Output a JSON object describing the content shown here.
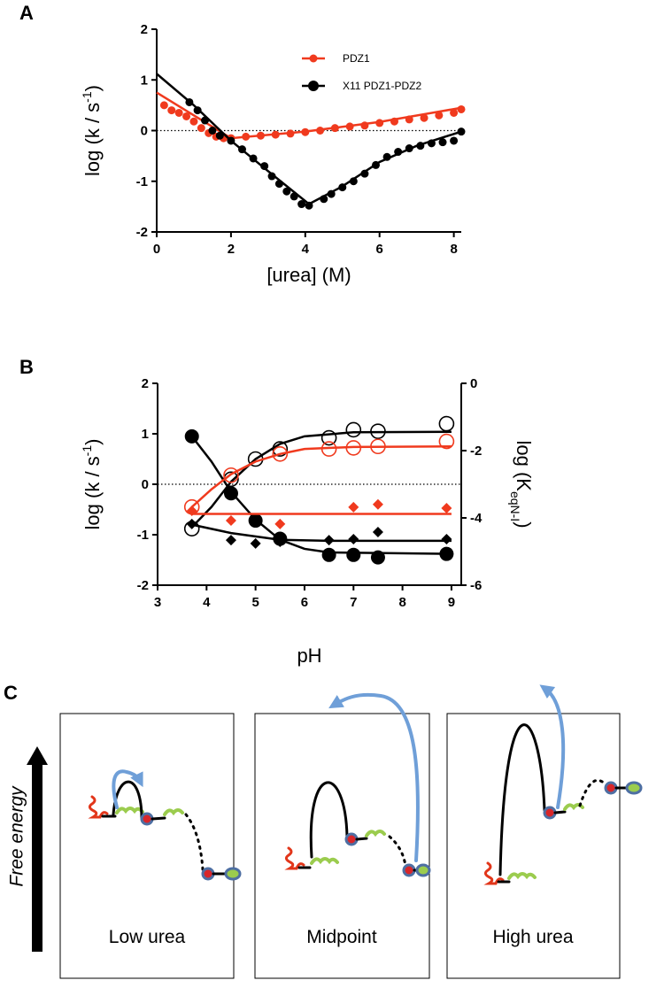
{
  "chart_data": [
    {
      "type": "scatter",
      "panel_label": "A",
      "xlabel": "[urea] (M)",
      "ylabel": {
        "text": "log (k / s",
        "sup": "-1",
        "tail": ")"
      },
      "xlim": [
        0,
        8.2
      ],
      "xticks": [
        0,
        2,
        4,
        6,
        8
      ],
      "ylim": [
        -2,
        2
      ],
      "yticks": [
        2,
        1,
        0,
        -1,
        -2
      ],
      "zero_line": true,
      "legend": "upper right",
      "series": [
        {
          "name": "PDZ1",
          "color": "#f03a1e",
          "marker": "circle",
          "x": [
            0.2,
            0.4,
            0.6,
            0.8,
            1.0,
            1.2,
            1.4,
            1.6,
            1.8,
            2.0,
            2.4,
            2.8,
            3.2,
            3.6,
            4.0,
            4.4,
            4.8,
            5.2,
            5.6,
            6.0,
            6.4,
            6.8,
            7.2,
            7.6,
            8.0,
            8.2
          ],
          "values": [
            0.5,
            0.4,
            0.35,
            0.28,
            0.18,
            0.05,
            -0.05,
            -0.12,
            -0.15,
            -0.15,
            -0.12,
            -0.1,
            -0.08,
            -0.06,
            -0.03,
            0.0,
            0.05,
            0.08,
            0.1,
            0.15,
            0.18,
            0.22,
            0.25,
            0.3,
            0.35,
            0.42
          ],
          "fit_x": [
            0,
            1,
            2,
            4,
            6,
            8.2
          ],
          "fit_values": [
            0.75,
            0.3,
            -0.15,
            -0.02,
            0.17,
            0.45
          ]
        },
        {
          "name": "X11 PDZ1-PDZ2",
          "color": "#000000",
          "marker": "circle",
          "x": [
            0.88,
            1.1,
            1.3,
            1.5,
            1.7,
            2.0,
            2.3,
            2.6,
            2.9,
            3.1,
            3.3,
            3.5,
            3.7,
            3.9,
            4.1,
            4.5,
            4.7,
            5.0,
            5.3,
            5.6,
            5.9,
            6.2,
            6.5,
            6.8,
            7.1,
            7.4,
            7.7,
            8.0,
            8.2
          ],
          "values": [
            0.56,
            0.4,
            0.2,
            0.0,
            -0.1,
            -0.2,
            -0.37,
            -0.55,
            -0.7,
            -0.9,
            -1.05,
            -1.2,
            -1.3,
            -1.45,
            -1.48,
            -1.35,
            -1.25,
            -1.12,
            -1.0,
            -0.85,
            -0.68,
            -0.52,
            -0.42,
            -0.35,
            -0.3,
            -0.25,
            -0.23,
            -0.2,
            -0.02
          ],
          "fit_x": [
            0,
            1,
            2,
            3,
            4.1,
            5,
            6,
            7,
            8.2
          ],
          "fit_values": [
            1.12,
            0.5,
            -0.2,
            -0.8,
            -1.45,
            -1.1,
            -0.62,
            -0.3,
            -0.02
          ]
        }
      ]
    },
    {
      "type": "scatter",
      "panel_label": "B",
      "xlabel": "pH",
      "ylabel": {
        "text": "log (k / s",
        "sup": "-1",
        "tail": ")"
      },
      "y2label": {
        "text": "log (K",
        "sub": "eqN-I",
        "tail": ")"
      },
      "xlim": [
        3,
        9.2
      ],
      "xticks": [
        3,
        4,
        5,
        6,
        7,
        8,
        9
      ],
      "ylim": [
        -2,
        2
      ],
      "yticks": [
        2,
        1,
        0,
        -1,
        -2
      ],
      "y2lim": [
        -6,
        0
      ],
      "y2ticks": [
        0,
        -2,
        -4,
        -6
      ],
      "zero_line": true,
      "series": [
        {
          "color": "#000000",
          "marker": "circle-large",
          "x": [
            3.7,
            4.5,
            5.0,
            5.5,
            6.5,
            7.0,
            7.5,
            8.9
          ],
          "values": [
            0.95,
            -0.18,
            -0.72,
            -1.08,
            -1.4,
            -1.4,
            -1.45,
            -1.38
          ],
          "fit_x": [
            3.7,
            4.1,
            4.5,
            5.0,
            5.5,
            6.0,
            6.5,
            9.0
          ],
          "fit_values": [
            0.95,
            0.45,
            -0.15,
            -0.7,
            -1.1,
            -1.28,
            -1.35,
            -1.38
          ]
        },
        {
          "color": "#000000",
          "marker": "open-circle",
          "x": [
            3.7,
            4.5,
            5.0,
            5.5,
            6.5,
            7.0,
            7.5,
            8.9
          ],
          "values": [
            -0.88,
            0.1,
            0.5,
            0.7,
            0.92,
            1.08,
            1.05,
            1.2
          ],
          "fit_x": [
            3.7,
            4.1,
            4.5,
            5.0,
            5.5,
            6.0,
            7.0,
            9.0
          ],
          "fit_values": [
            -0.85,
            -0.45,
            0.05,
            0.5,
            0.8,
            0.95,
            1.03,
            1.04
          ]
        },
        {
          "color": "#f03a1e",
          "marker": "open-circle",
          "x": [
            3.7,
            4.5,
            5.5,
            6.5,
            7.0,
            7.5,
            8.9
          ],
          "values": [
            -0.45,
            0.18,
            0.6,
            0.7,
            0.72,
            0.75,
            0.85
          ],
          "fit_x": [
            3.7,
            4.1,
            4.5,
            5.0,
            5.5,
            6.0,
            7.0,
            9.0
          ],
          "fit_values": [
            -0.45,
            -0.1,
            0.2,
            0.45,
            0.6,
            0.7,
            0.74,
            0.75
          ]
        },
        {
          "color": "#f03a1e",
          "marker": "diamond",
          "axis": "y2",
          "x": [
            3.7,
            4.5,
            5.5,
            7.0,
            7.5,
            8.9
          ],
          "values": [
            -3.79,
            -4.08,
            -4.18,
            -3.68,
            -3.6,
            -3.71
          ],
          "fit_x": [
            3.7,
            9.0
          ],
          "fit_values": [
            -3.88,
            -3.88
          ]
        },
        {
          "color": "#000000",
          "marker": "diamond",
          "axis": "y2",
          "x": [
            3.7,
            4.5,
            5.0,
            5.5,
            6.5,
            7.0,
            7.5,
            8.9
          ],
          "values": [
            -4.18,
            -4.66,
            -4.76,
            -4.71,
            -4.66,
            -4.63,
            -4.42,
            -4.63
          ],
          "fit_x": [
            3.7,
            4.5,
            5.5,
            6.5,
            9.0
          ],
          "fit_values": [
            -4.2,
            -4.45,
            -4.65,
            -4.68,
            -4.68
          ]
        }
      ]
    }
  ],
  "panel_c": {
    "panel_label": "C",
    "y_axis_label": "Free energy",
    "boxes": [
      {
        "label": "Low urea"
      },
      {
        "label": "Midpoint"
      },
      {
        "label": "High urea"
      }
    ]
  }
}
